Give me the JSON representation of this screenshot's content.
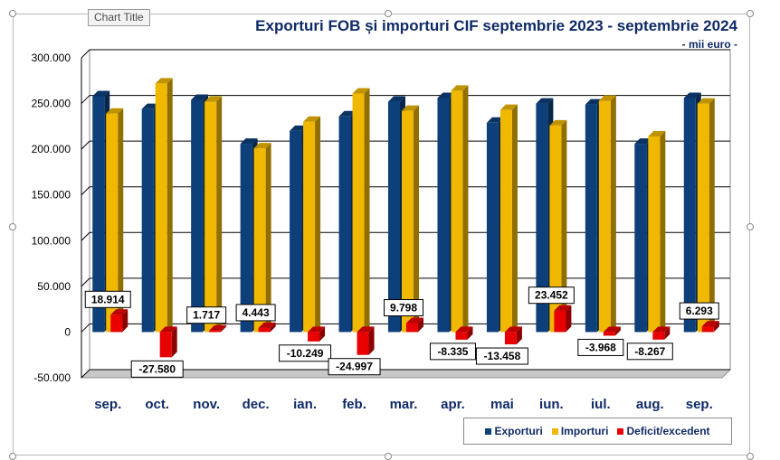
{
  "chart_data": {
    "type": "bar",
    "title": "Exporturi FOB și importuri CIF septembrie 2023 - septembrie 2024",
    "subtitle": "- mii euro -",
    "categories": [
      "sep.",
      "oct.",
      "nov.",
      "dec.",
      "ian.",
      "feb.",
      "mar.",
      "apr.",
      "mai",
      "iun.",
      "iul.",
      "aug.",
      "sep."
    ],
    "series": [
      {
        "name": "Exporturi",
        "color": "#0d3f7a",
        "values": [
          258000,
          244000,
          254000,
          206000,
          220000,
          236000,
          252000,
          256000,
          229000,
          250000,
          249000,
          206000,
          256000
        ]
      },
      {
        "name": "Importuri",
        "color": "#f0b800",
        "values": [
          239000,
          272000,
          252000,
          201000,
          230000,
          261000,
          242000,
          264000,
          243000,
          226000,
          253000,
          214000,
          250000
        ]
      },
      {
        "name": "Deficit/excedent",
        "color": "#e80000",
        "values": [
          18914,
          -27580,
          1717,
          4443,
          -10249,
          -24997,
          9798,
          -8335,
          -13458,
          23452,
          -3968,
          -8267,
          6293
        ]
      }
    ],
    "data_labels": [
      "18.914",
      "-27.580",
      "1.717",
      "4.443",
      "-10.249",
      "-24.997",
      "9.798",
      "-8.335",
      "-13.458",
      "23.452",
      "-3.968",
      "-8.267",
      "6.293"
    ],
    "y_ticks": [
      "300.000",
      "250.000",
      "200.000",
      "150.000",
      "100.000",
      "50.000",
      "0",
      "-50.000"
    ],
    "ylim": [
      -50000,
      300000
    ],
    "grid": true,
    "legend_position": "bottom-right"
  },
  "ui": {
    "tooltip": "Chart Title"
  }
}
